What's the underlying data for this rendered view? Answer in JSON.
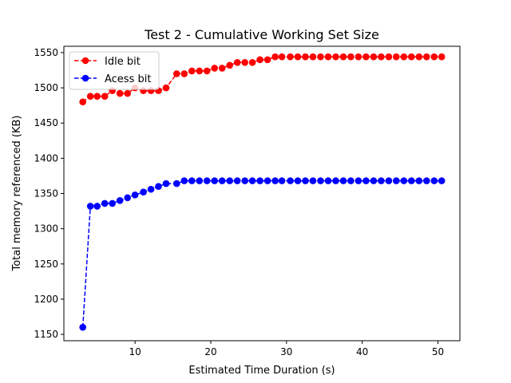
{
  "chart_data": {
    "type": "line",
    "title": "Test 2 - Cumulative Working Set Size",
    "xlabel": "Estimated Time Duration (s)",
    "ylabel": "Total memory referenced (KB)",
    "xlim": [
      0.6,
      52.9
    ],
    "ylim": [
      1141,
      1559
    ],
    "xticks": [
      10,
      20,
      30,
      40,
      50
    ],
    "yticks": [
      1150,
      1200,
      1250,
      1300,
      1350,
      1400,
      1450,
      1500,
      1550
    ],
    "grid": false,
    "legend_position": "top-left",
    "x": [
      3,
      4,
      5,
      6,
      7,
      8,
      9,
      10,
      11,
      12,
      13,
      14,
      15,
      16,
      17,
      18,
      19,
      20,
      21,
      22,
      23,
      24,
      25,
      26,
      27,
      28,
      29,
      30,
      31,
      32,
      33,
      34,
      35,
      36,
      37,
      38,
      39,
      40,
      41,
      42,
      43,
      44,
      45,
      46,
      47,
      48,
      49,
      50
    ],
    "x_actual": [
      3.1,
      4.1,
      5.0,
      6.0,
      7.0,
      8.0,
      9.0,
      10.0,
      11.1,
      12.1,
      13.1,
      14.1,
      15.5,
      16.5,
      17.5,
      18.5,
      19.5,
      20.5,
      21.5,
      22.5,
      23.5,
      24.5,
      25.5,
      26.5,
      27.5,
      28.5,
      29.4,
      30.5,
      31.5,
      32.5,
      33.5,
      34.5,
      35.5,
      36.5,
      37.5,
      38.5,
      39.5,
      40.5,
      41.5,
      42.5,
      43.5,
      44.5,
      45.5,
      46.5,
      47.5,
      48.5,
      49.5,
      50.5
    ],
    "series": [
      {
        "name": "Idle bit",
        "color": "#ff0000",
        "values": [
          1480,
          1488,
          1488,
          1488,
          1496,
          1492,
          1492,
          1500,
          1496,
          1496,
          1496,
          1500,
          1520,
          1520,
          1524,
          1524,
          1524,
          1528,
          1528,
          1532,
          1536,
          1536,
          1536,
          1540,
          1540,
          1544,
          1544,
          1544,
          1544,
          1544,
          1544,
          1544,
          1544,
          1544,
          1544,
          1544,
          1544,
          1544,
          1544,
          1544,
          1544,
          1544,
          1544,
          1544,
          1544,
          1544,
          1544,
          1544
        ]
      },
      {
        "name": "Acess bit",
        "color": "#0000ff",
        "values": [
          1160,
          1332,
          1332,
          1336,
          1336,
          1340,
          1344,
          1348,
          1352,
          1356,
          1360,
          1364,
          1364,
          1368,
          1368,
          1368,
          1368,
          1368,
          1368,
          1368,
          1368,
          1368,
          1368,
          1368,
          1368,
          1368,
          1368,
          1368,
          1368,
          1368,
          1368,
          1368,
          1368,
          1368,
          1368,
          1368,
          1368,
          1368,
          1368,
          1368,
          1368,
          1368,
          1368,
          1368,
          1368,
          1368,
          1368,
          1368
        ]
      }
    ]
  }
}
